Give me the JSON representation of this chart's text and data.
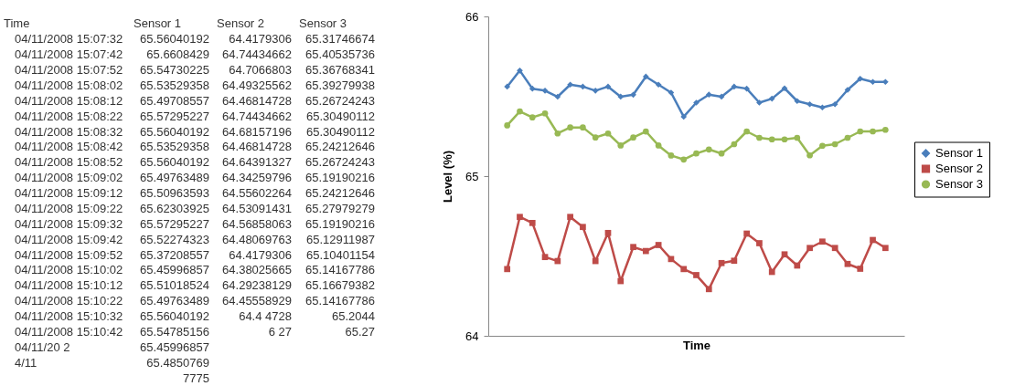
{
  "chart_data": [
    {
      "type": "other",
      "annotations": [
        "Time\tSensor 1\tSensor 2\tSensor 3",
        "04/11/2008 15:07:32\t65.56040192\t64.4179306\t65.31746674",
        "04/11/2008 15:07:42\t65.6608429\t64.74434662\t65.40535736",
        "04/11/2008 15:07:52\t65.54730225\t64.7066803\t65.36768341",
        "04/11/2008 15:08:02\t65.53529358\t64.49325562\t65.39279938",
        "04/11/2008 15:08:12\t65.49708557\t64.46814728\t65.26724243",
        "04/11/2008 15:08:22\t65.57295227\t64.74434662\t65.30490112",
        "04/11/2008 15:08:32\t65.56040192\t64.68157196\t65.30490112",
        "04/11/2008 15:08:42\t65.53529358\t64.46814728\t65.24212646",
        "04/11/2008 15:08:52\t65.56040192\t64.64391327\t65.26724243",
        "04/11/2008 15:09:02\t65.49763489\t64.34259796\t65.19190216",
        "04/11/2008 15:09:12\t65.50963593\t64.55602264\t65.24212646",
        "04/11/2008 15:09:22\t65.62303925\t64.53091431\t65.27979279",
        "04/11/2008 15:09:32\t65.57295227\t64.56858063\t65.19190216",
        "04/11/2008 15:09:42\t65.52274323\t64.48069763\t65.12911987",
        "04/11/2008 15:09:52\t65.37208557\t64.4179306\t65.10401154",
        "04/11/2008 15:10:02\t65.45996857\t64.38025665\t65.14167786",
        "04/11/2008 15:10:12\t65.51018524\t64.29238129\t65.16679382",
        "04/11/2008 15:10:22\t65.49763489\t64.45558929\t65.14167786",
        "04/11/2008 15:10:32\t65.56040192\t64.4   4728\t65.2044",
        "04/11/2008 15:10:42\t65.54785156\t6    27\t65.27",
        "04/11/20   2\t65.45996857",
        "4/11\t65.4850769",
        "\t7775"
      ]
    },
    {
      "type": "line",
      "xlabel": "Time",
      "ylabel": "Level (%)",
      "ylim": [
        64,
        66
      ],
      "yticks": [
        64,
        65,
        66
      ],
      "grid": false,
      "legend": "right",
      "categories": [
        null,
        null,
        null,
        null,
        null,
        null,
        null,
        null,
        null,
        null,
        null,
        null,
        null,
        null,
        null,
        null,
        null,
        null,
        null,
        null,
        null,
        null,
        null,
        null,
        null,
        null,
        null,
        null,
        null,
        null,
        null
      ],
      "series": [
        {
          "name": "Sensor 1",
          "color": "#4a7ebb",
          "marker": "diamond",
          "values": [
            65.56040192,
            65.6608429,
            65.54730225,
            65.53529358,
            65.49708557,
            65.57295227,
            65.56040192,
            65.53529358,
            65.56040192,
            65.49763489,
            65.50963593,
            65.62303925,
            65.57295227,
            65.52274323,
            65.37208557,
            65.45996857,
            65.51018524,
            65.49763489,
            65.56040192,
            65.54785156,
            65.45996857,
            65.4850769,
            65.55,
            65.47,
            65.45,
            65.43,
            65.45,
            65.54,
            65.61,
            65.59,
            65.59
          ]
        },
        {
          "name": "Sensor 2",
          "color": "#be4b48",
          "marker": "square",
          "values": [
            64.4179306,
            64.74434662,
            64.7066803,
            64.49325562,
            64.46814728,
            64.74434662,
            64.68157196,
            64.46814728,
            64.64391327,
            64.34259796,
            64.55602264,
            64.53091431,
            64.56858063,
            64.48069763,
            64.4179306,
            64.38025665,
            64.29238129,
            64.45558929,
            64.47,
            64.64,
            64.58,
            64.4,
            64.51,
            64.44,
            64.55,
            64.59,
            64.55,
            64.45,
            64.42,
            64.6,
            64.55
          ]
        },
        {
          "name": "Sensor 3",
          "color": "#98b954",
          "marker": "circle",
          "values": [
            65.31746674,
            65.40535736,
            65.36768341,
            65.39279938,
            65.26724243,
            65.30490112,
            65.30490112,
            65.24212646,
            65.26724243,
            65.19190216,
            65.24212646,
            65.27979279,
            65.19190216,
            65.12911987,
            65.10401154,
            65.14167786,
            65.16679382,
            65.14167786,
            65.2,
            65.28,
            65.24,
            65.23,
            65.23,
            65.24,
            65.13,
            65.19,
            65.2,
            65.24,
            65.28,
            65.28,
            65.29
          ]
        }
      ]
    }
  ]
}
